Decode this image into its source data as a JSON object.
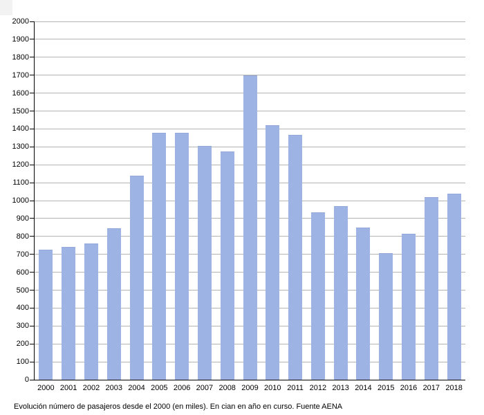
{
  "figure": {
    "caption": "Evolución número de pasajeros desde el 2000 (en miles). En cian en año en curso. Fuente AENA"
  },
  "chart_data": {
    "type": "bar",
    "title": "",
    "xlabel": "",
    "ylabel": "",
    "categories": [
      "2000",
      "2001",
      "2002",
      "2003",
      "2004",
      "2005",
      "2006",
      "2007",
      "2008",
      "2009",
      "2010",
      "2011",
      "2012",
      "2013",
      "2014",
      "2015",
      "2016",
      "2017",
      "2018"
    ],
    "values": [
      727,
      740,
      760,
      845,
      1140,
      1380,
      1380,
      1305,
      1275,
      1700,
      1420,
      1365,
      935,
      970,
      850,
      707,
      815,
      1020,
      1038
    ],
    "ylim": [
      0,
      2000
    ],
    "yticks": [
      0,
      100,
      200,
      300,
      400,
      500,
      600,
      700,
      800,
      900,
      1000,
      1100,
      1200,
      1300,
      1400,
      1500,
      1600,
      1700,
      1800,
      1900,
      2000
    ],
    "grid": true,
    "legend_position": "none",
    "bar_color": "#9db3e3",
    "bar_edge_color": "#93a9d9",
    "gridline_color": "#b3b3b3",
    "axis_color": "#000000"
  }
}
